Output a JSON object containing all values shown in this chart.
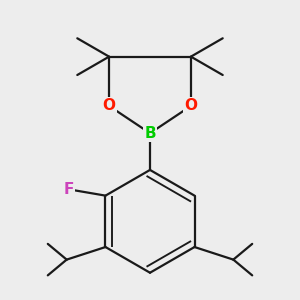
{
  "background_color": "#ededed",
  "bond_color": "#1a1a1a",
  "bond_width": 1.6,
  "atom_colors": {
    "B": "#00cc00",
    "O": "#ff1a00",
    "F": "#cc44bb",
    "C": "#1a1a1a"
  },
  "atom_fontsizes": {
    "B": 11,
    "O": 11,
    "F": 11
  },
  "figsize": [
    3.0,
    3.0
  ],
  "dpi": 100
}
